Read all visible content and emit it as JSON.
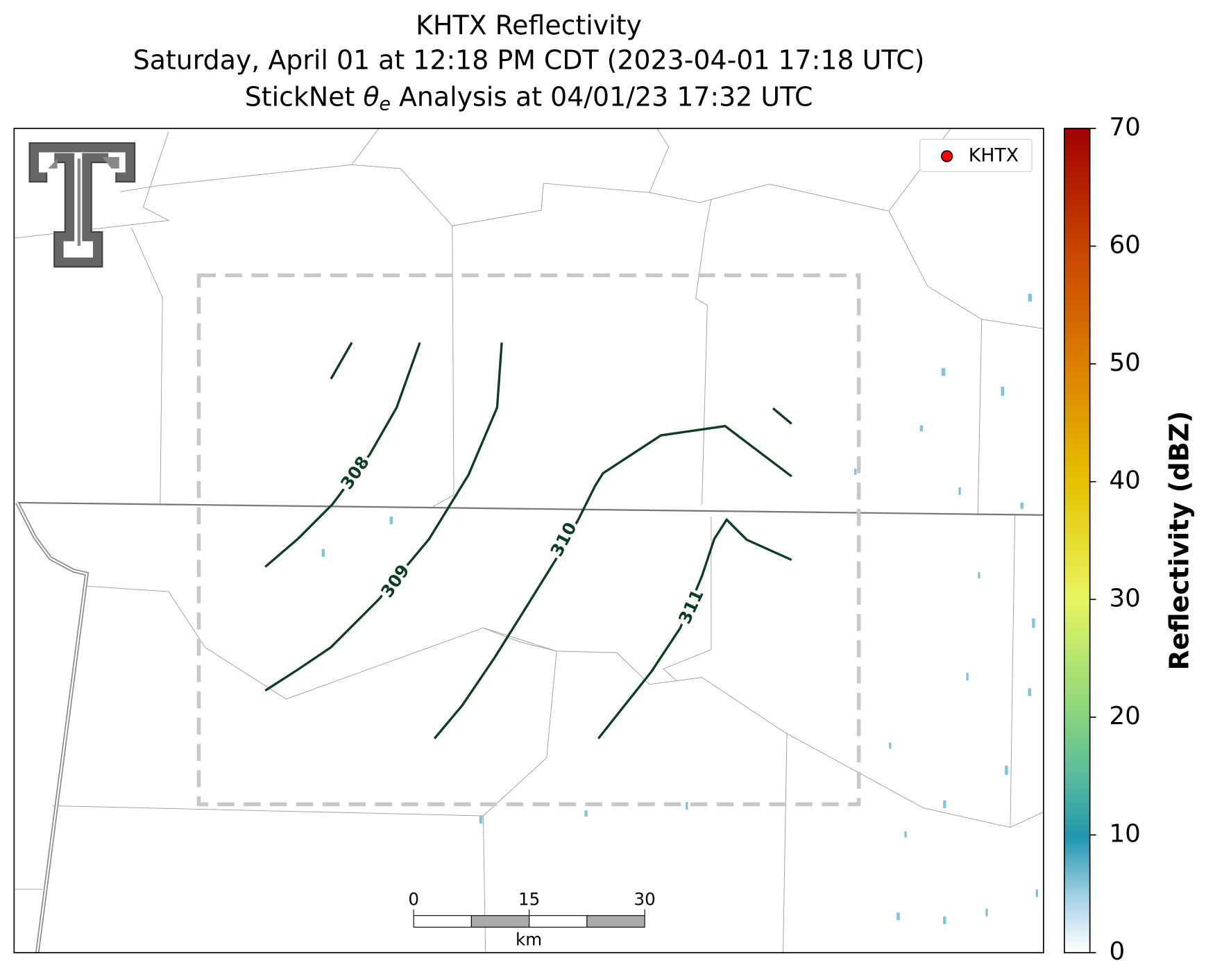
{
  "title": {
    "line1": "KHTX Reflectivity",
    "line2": "Saturday, April 01 at 12:18 PM CDT (2023-04-01 17:18 UTC)",
    "line3": {
      "prefix": "StickNet ",
      "symbol": "θ",
      "subscript": "e",
      "suffix": " Analysis at 04/01/23 17:32 UTC"
    }
  },
  "legend": {
    "label": "KHTX",
    "color": "#ff0000"
  },
  "contours": [
    {
      "level": 308
    },
    {
      "level": 309
    },
    {
      "level": 310
    },
    {
      "level": 311
    }
  ],
  "contour_color": "#0b3d20",
  "colorbar": {
    "label": "Reflectivity (dBZ)",
    "lim": [
      0,
      70
    ],
    "ticks": [
      0,
      10,
      20,
      30,
      40,
      50,
      60,
      70
    ]
  },
  "scalebar": {
    "lim": [
      0,
      30
    ],
    "ticks": [
      0,
      15,
      30
    ],
    "unit": "km"
  }
}
